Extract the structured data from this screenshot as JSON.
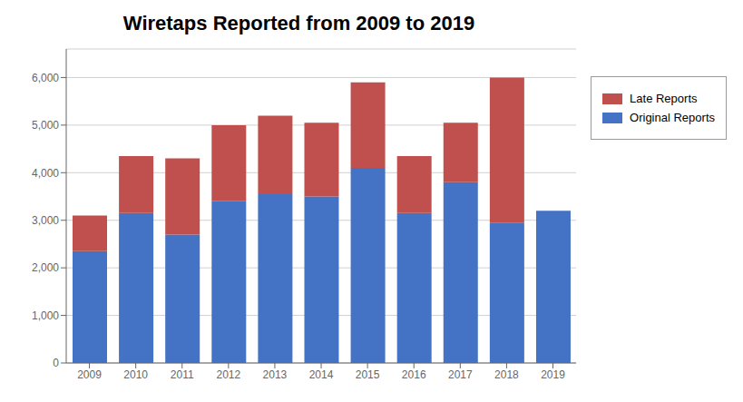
{
  "chart_data": {
    "type": "bar",
    "title": "Wiretaps Reported from 2009 to 2019",
    "stacked": true,
    "categories": [
      "2009",
      "2010",
      "2011",
      "2012",
      "2013",
      "2014",
      "2015",
      "2016",
      "2017",
      "2018",
      "2019"
    ],
    "series": [
      {
        "name": "Original Reports",
        "color": "#4472C4",
        "values": [
          2350,
          3150,
          2700,
          3400,
          3550,
          3500,
          4100,
          3150,
          3800,
          2950,
          3200
        ]
      },
      {
        "name": "Late Reports",
        "color": "#C0504D",
        "values": [
          750,
          1200,
          1600,
          1600,
          1650,
          1550,
          1800,
          1200,
          1250,
          3050,
          0
        ]
      }
    ],
    "ylim": [
      0,
      6600
    ],
    "yticks": [
      0,
      {
        "value": 1000,
        "label": "1,000"
      },
      {
        "value": 2000,
        "label": "2,000"
      },
      {
        "value": 3000,
        "label": "3,000"
      },
      {
        "value": 4000,
        "label": "4,000"
      },
      {
        "value": 5000,
        "label": "5,000"
      },
      {
        "value": 6000,
        "label": "6,000"
      }
    ],
    "grid": true,
    "legend": "right"
  }
}
